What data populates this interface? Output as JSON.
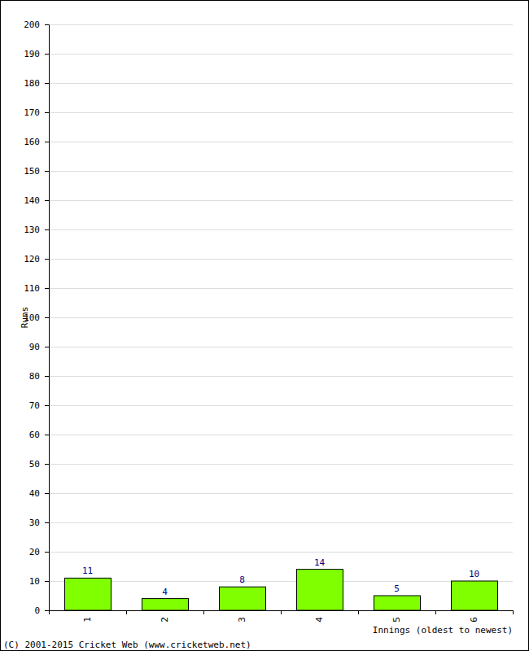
{
  "chart_data": {
    "type": "bar",
    "categories": [
      "1",
      "2",
      "3",
      "4",
      "5",
      "6"
    ],
    "values": [
      11,
      4,
      8,
      14,
      5,
      10
    ],
    "color": "#80ff00",
    "ylim": [
      0,
      200
    ],
    "yticks": [
      0,
      10,
      20,
      30,
      40,
      50,
      60,
      70,
      80,
      90,
      100,
      110,
      120,
      130,
      140,
      150,
      160,
      170,
      180,
      190,
      200
    ],
    "grid": true,
    "data_labels": true,
    "x_label": "Innings (oldest to newest)",
    "y_label": "Runs",
    "annotations": [
      "(C) 2001-2015 Cricket Web (www.cricketweb.net)"
    ]
  }
}
